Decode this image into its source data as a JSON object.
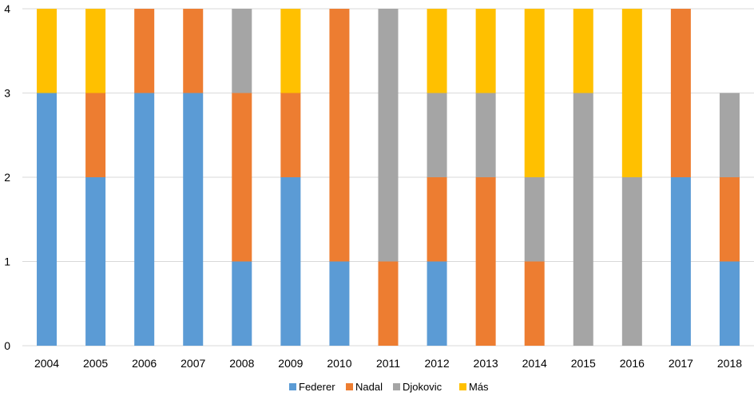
{
  "chart_data": {
    "type": "bar",
    "stacked": true,
    "categories": [
      "2004",
      "2005",
      "2006",
      "2007",
      "2008",
      "2009",
      "2010",
      "2011",
      "2012",
      "2013",
      "2014",
      "2015",
      "2016",
      "2017",
      "2018"
    ],
    "series": [
      {
        "name": "Federer",
        "color": "#5B9BD5",
        "values": [
          3,
          2,
          3,
          3,
          1,
          2,
          1,
          0,
          1,
          0,
          0,
          0,
          0,
          2,
          1
        ]
      },
      {
        "name": "Nadal",
        "color": "#ED7D31",
        "values": [
          0,
          1,
          1,
          1,
          2,
          1,
          3,
          1,
          1,
          2,
          1,
          0,
          0,
          2,
          1
        ]
      },
      {
        "name": "Djokovic",
        "color": "#A5A5A5",
        "values": [
          0,
          0,
          0,
          0,
          1,
          0,
          0,
          3,
          1,
          1,
          1,
          3,
          2,
          0,
          1
        ]
      },
      {
        "name": "Más",
        "color": "#FFC000",
        "values": [
          1,
          1,
          0,
          0,
          0,
          1,
          0,
          0,
          1,
          1,
          2,
          1,
          2,
          0,
          0
        ]
      }
    ],
    "y_ticks": [
      "0",
      "1",
      "2",
      "3",
      "4"
    ],
    "ylim": [
      0,
      4
    ],
    "grid": true,
    "legend": "bottom",
    "gridline_color": "#D9D9D9"
  }
}
